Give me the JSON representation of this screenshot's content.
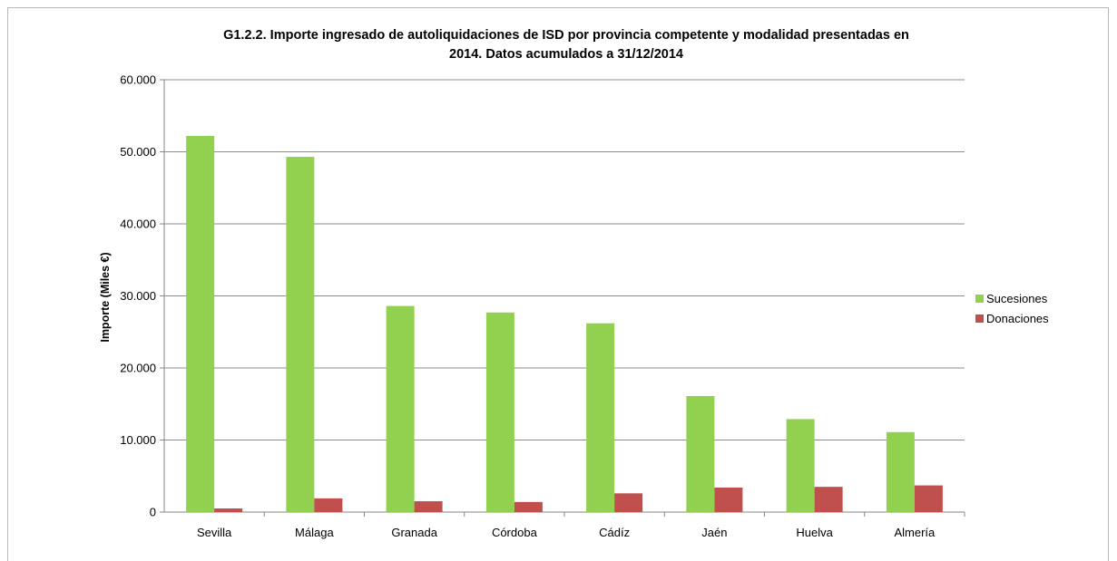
{
  "chart_data": {
    "type": "bar",
    "title_line1": "G1.2.2. Importe ingresado de autoliquidaciones de ISD por provincia competente y modalidad presentadas en",
    "title_line2": "2014. Datos acumulados a 31/12/2014",
    "ylabel": "Importe (Miles €)",
    "xlabel": "",
    "ylim": [
      0,
      60000
    ],
    "yticks": [
      0,
      10000,
      20000,
      30000,
      40000,
      50000,
      60000
    ],
    "ytick_labels": [
      "0",
      "10.000",
      "20.000",
      "30.000",
      "40.000",
      "50.000",
      "60.000"
    ],
    "grid": true,
    "legend_position": "right",
    "categories": [
      "Sevilla",
      "Málaga",
      "Granada",
      "Córdoba",
      "Cádíz",
      "Jaén",
      "Huelva",
      "Almería"
    ],
    "series": [
      {
        "name": "Sucesiones",
        "color": "#92d050",
        "values": [
          52200,
          49300,
          28600,
          27700,
          26200,
          16100,
          12900,
          11100
        ]
      },
      {
        "name": "Donaciones",
        "color": "#c0504d",
        "values": [
          500,
          1900,
          1500,
          1400,
          2600,
          3400,
          3500,
          3700
        ]
      }
    ]
  }
}
